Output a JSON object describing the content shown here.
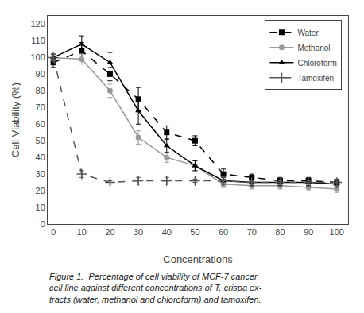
{
  "chart_data": {
    "type": "line",
    "xlabel": "Concentrations",
    "ylabel": "Cell Viability (%)",
    "annotations": [
      "Figure 1.  Percentage of cell viability of MCF-7 cancer\ncell line against different concentrations of T. crispa ex-\ntracts (water, methanol and chloroform) and tamoxifen."
    ],
    "x": [
      0,
      10,
      20,
      30,
      40,
      50,
      60,
      70,
      80,
      90,
      100
    ],
    "series": [
      {
        "name": "Water",
        "color": "#000000",
        "marker": "square",
        "line_style": "dashed",
        "values": [
          97,
          104,
          90,
          75,
          55,
          50,
          30,
          28,
          26,
          26,
          25
        ],
        "errors": [
          3,
          5,
          4,
          7,
          4,
          3,
          3,
          2,
          2,
          2,
          2
        ]
      },
      {
        "name": "Methanol",
        "color": "#999999",
        "marker": "circle",
        "line_style": "solid",
        "values": [
          100,
          99,
          80,
          52,
          40,
          35,
          24,
          23,
          23,
          22,
          21
        ],
        "errors": [
          2,
          3,
          4,
          4,
          3,
          3,
          2,
          2,
          2,
          2,
          2
        ]
      },
      {
        "name": "Chloroform",
        "color": "#000000",
        "marker": "triangle-up",
        "line_style": "solid",
        "values": [
          100,
          108,
          97,
          68,
          47,
          35,
          26,
          25,
          25,
          25,
          24
        ],
        "errors": [
          2,
          5,
          6,
          8,
          4,
          3,
          2,
          2,
          2,
          2,
          2
        ]
      },
      {
        "name": "Tamoxifen",
        "color": "#555555",
        "marker": "cross",
        "line_style": "dashed",
        "values": [
          100,
          30,
          25,
          26,
          26,
          26,
          26,
          25,
          25,
          25,
          25
        ],
        "errors": [
          2,
          2,
          1,
          2,
          2,
          1,
          1,
          1,
          1,
          1,
          1
        ]
      }
    ],
    "xlim": [
      -2,
      104
    ],
    "xticks": [
      0,
      10,
      20,
      30,
      40,
      50,
      60,
      70,
      80,
      90,
      100
    ],
    "ylim": [
      0,
      125
    ],
    "yticks": [
      0,
      10,
      20,
      30,
      40,
      50,
      60,
      70,
      80,
      90,
      100,
      110,
      120
    ],
    "grid": false,
    "legend": "upper right"
  }
}
